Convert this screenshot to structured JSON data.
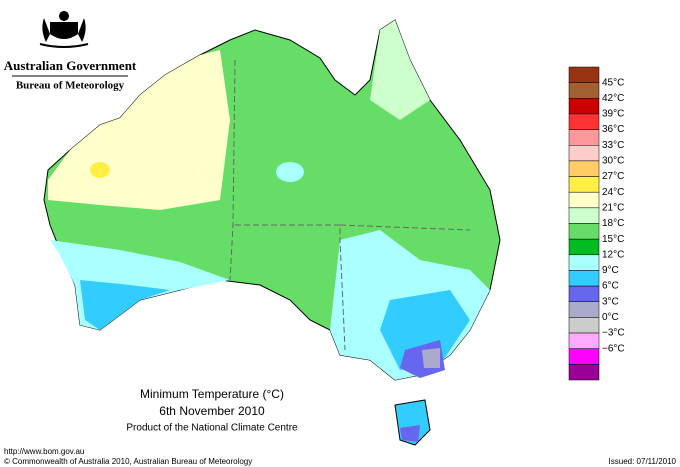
{
  "header": {
    "agency": "Australian Government",
    "bureau": "Bureau of Meteorology"
  },
  "map": {
    "title": "Minimum Temperature (°C)",
    "date": "6th November 2010",
    "product": "Product of the National Climate Centre"
  },
  "legend": {
    "colors": [
      "#993311",
      "#a06030",
      "#cc0000",
      "#ff3333",
      "#ff9999",
      "#ffcccc",
      "#ffcc66",
      "#ffee44",
      "#ffffcc",
      "#ccffcc",
      "#66dd66",
      "#00bb22",
      "#aaffff",
      "#33ccff",
      "#6666ee",
      "#aaaacc",
      "#cccccc",
      "#ffaaff",
      "#ff00ff",
      "#990099"
    ],
    "labels": [
      "45°C",
      "42°C",
      "39°C",
      "36°C",
      "33°C",
      "30°C",
      "27°C",
      "24°C",
      "21°C",
      "18°C",
      "15°C",
      "12°C",
      "9°C",
      "6°C",
      "3°C",
      "0°C",
      "−3°C",
      "−6°C"
    ]
  },
  "footer": {
    "url": "http://www.bom.gov.au",
    "copyright": "© Commonwealth of Australia 2010, Australian Bureau of Meteorology",
    "issued": "Issued: 07/11/2010"
  }
}
